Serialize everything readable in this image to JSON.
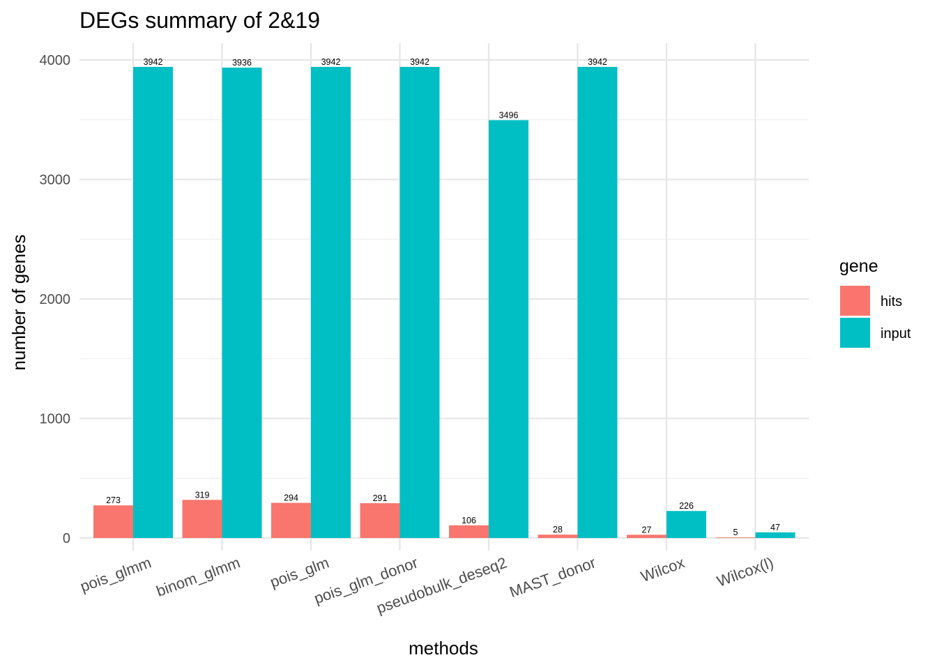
{
  "chart_data": {
    "type": "bar",
    "title": "DEGs summary of  2&19",
    "xlabel": "methods",
    "ylabel": "number of genes",
    "categories": [
      "pois_glmm",
      "binom_glmm",
      "pois_glm",
      "pois_glm_donor",
      "pseudobulk_deseq2",
      "MAST_donor",
      "Wilcox",
      "Wilcox(l)"
    ],
    "series": [
      {
        "name": "hits",
        "color": "#F8766D",
        "values": [
          273,
          319,
          294,
          291,
          106,
          28,
          27,
          5
        ]
      },
      {
        "name": "input",
        "color": "#00BFC4",
        "values": [
          3942,
          3936,
          3942,
          3942,
          3496,
          3942,
          226,
          47
        ]
      }
    ],
    "yticks": [
      0,
      1000,
      2000,
      3000,
      4000
    ],
    "ylim": [
      0,
      4200
    ],
    "grid": true,
    "legend": {
      "title": "gene",
      "position": "right"
    }
  }
}
